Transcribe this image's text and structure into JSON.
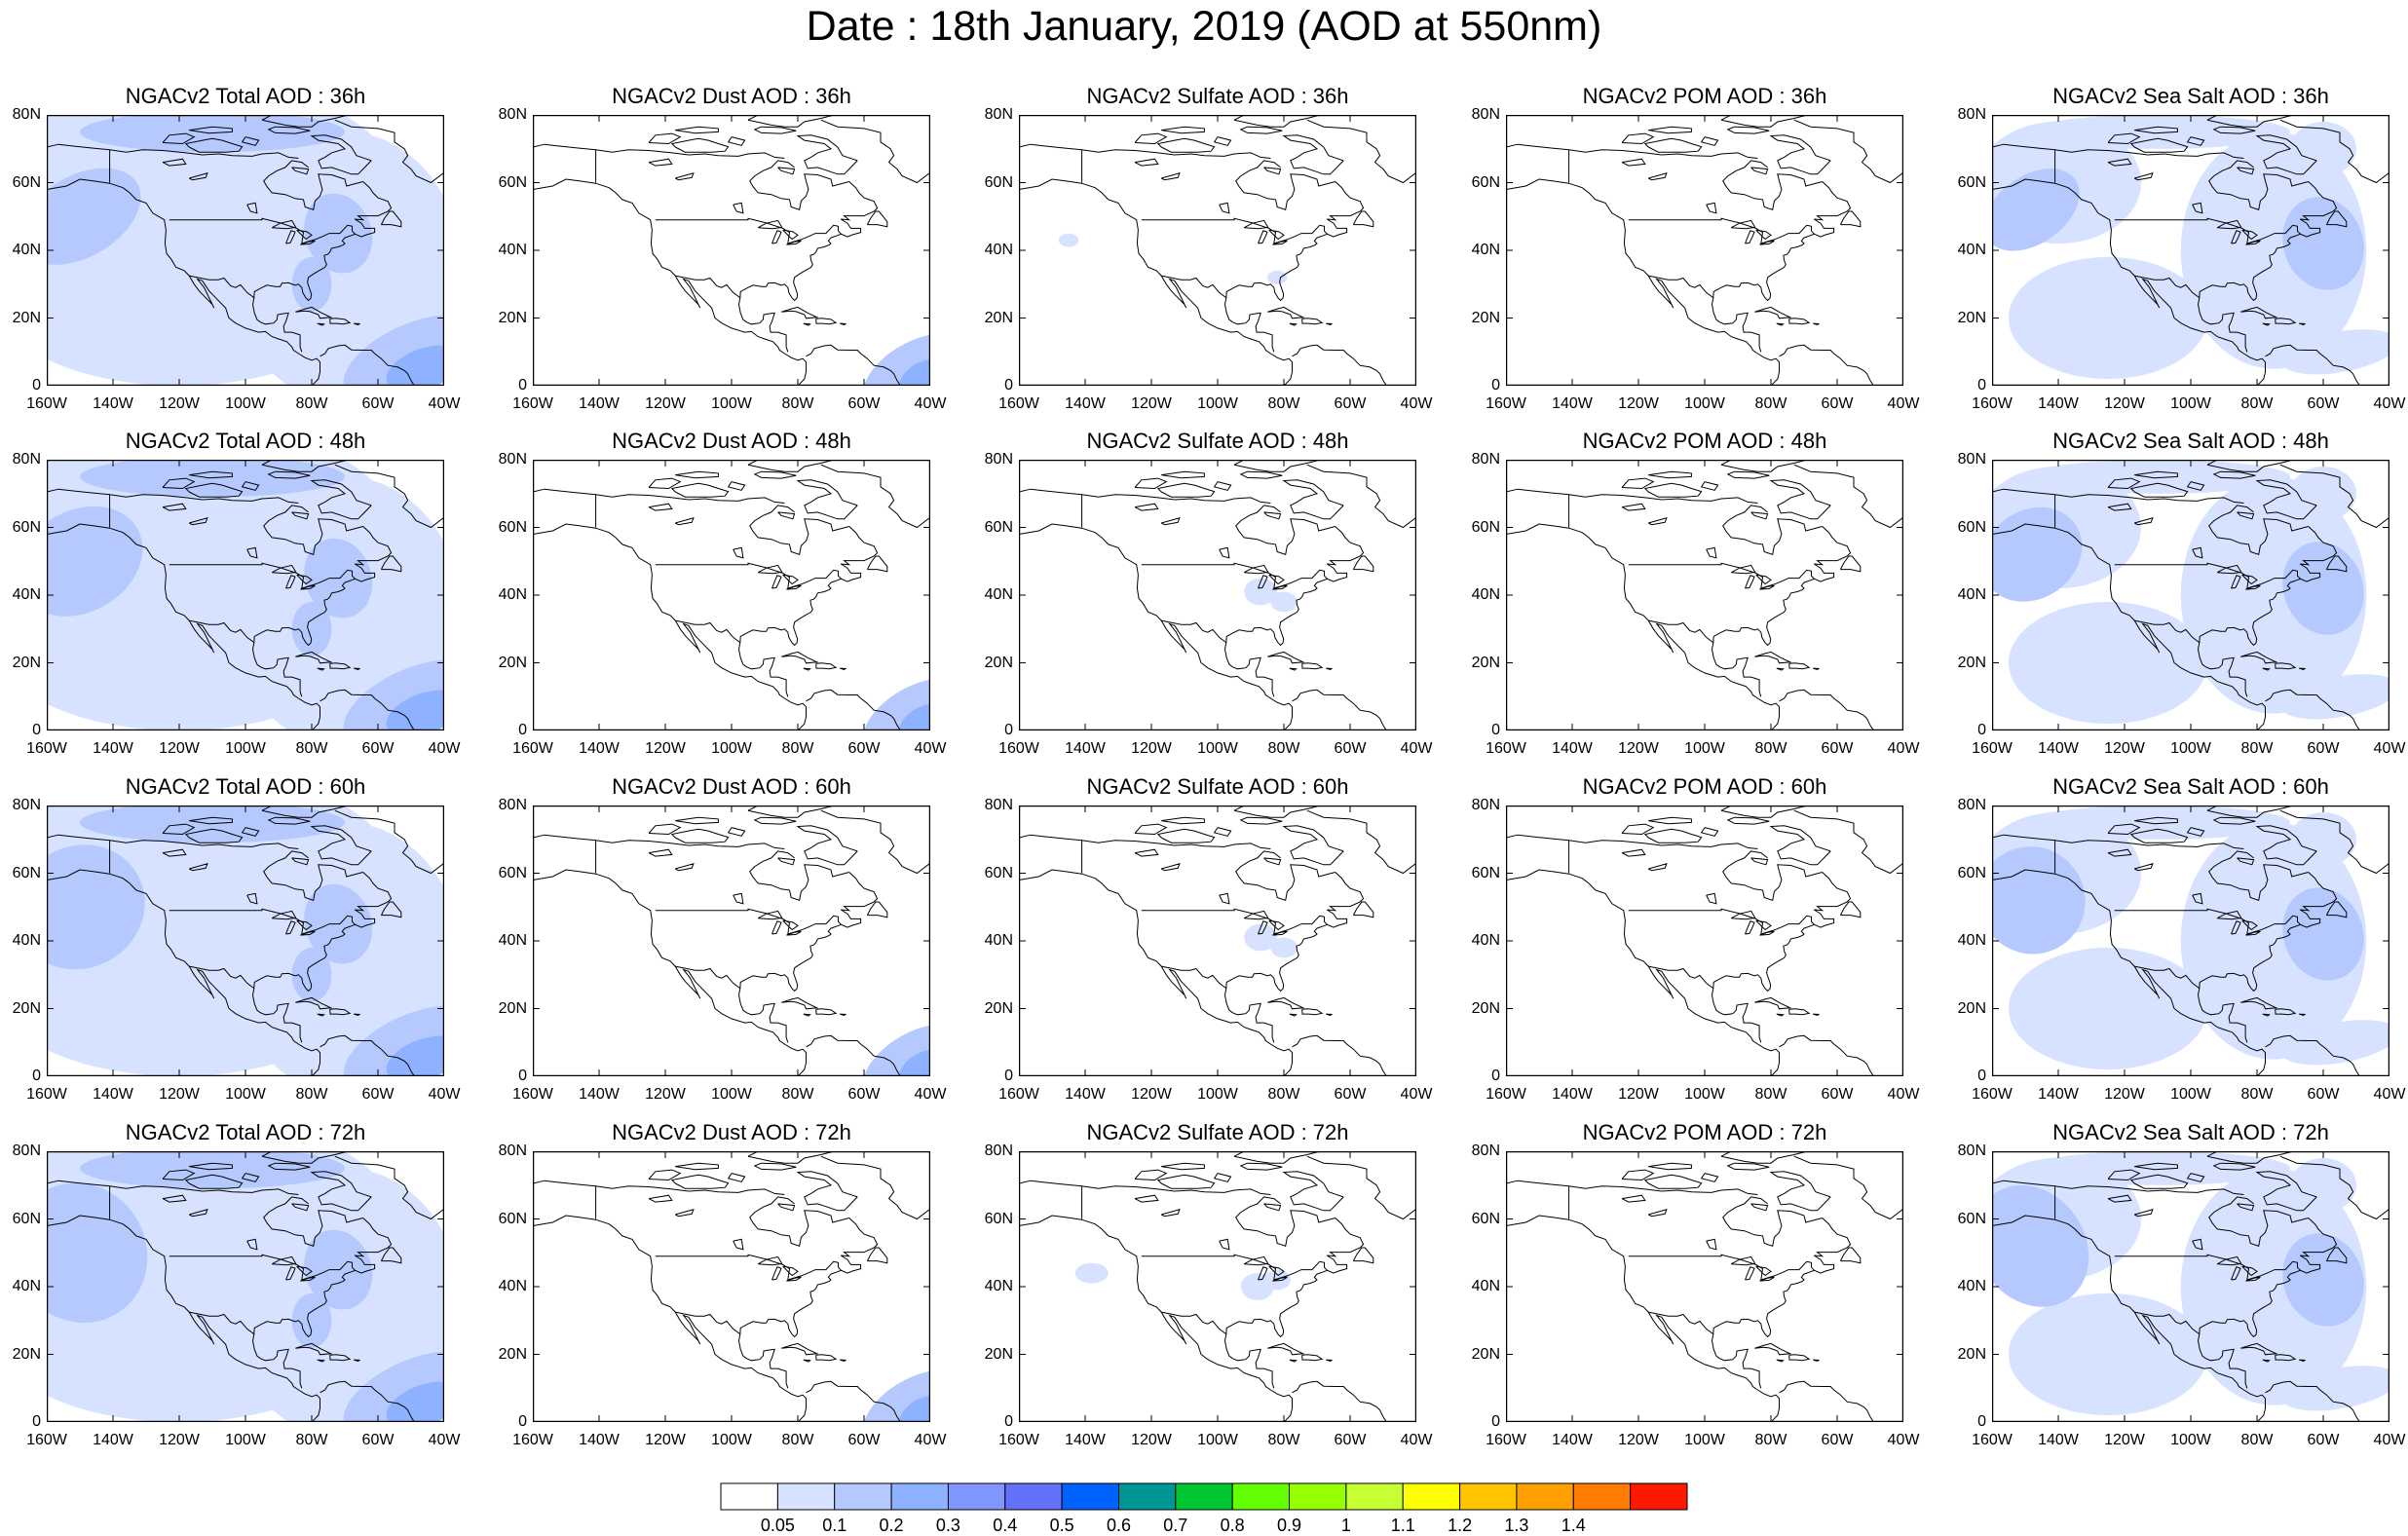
{
  "title": "Date : 18th January, 2019 (AOD at 550nm)",
  "x_ticks": [
    "160W",
    "140W",
    "120W",
    "100W",
    "80W",
    "60W",
    "40W"
  ],
  "y_ticks": [
    "80N",
    "60N",
    "40N",
    "20N",
    "0"
  ],
  "rows": [
    {
      "panels": [
        {
          "title": "NGACv2 Total AOD : 36h",
          "species": "total"
        },
        {
          "title": "NGACv2 Dust AOD : 36h",
          "species": "dust"
        },
        {
          "title": "NGACv2 Sulfate AOD : 36h",
          "species": "sulfate"
        },
        {
          "title": "NGACv2 POM AOD : 36h",
          "species": "pom"
        },
        {
          "title": "NGACv2 Sea Salt AOD : 36h",
          "species": "seasalt"
        }
      ]
    },
    {
      "panels": [
        {
          "title": "NGACv2 Total AOD : 48h",
          "species": "total"
        },
        {
          "title": "NGACv2 Dust AOD : 48h",
          "species": "dust"
        },
        {
          "title": "NGACv2 Sulfate AOD : 48h",
          "species": "sulfate"
        },
        {
          "title": "NGACv2 POM AOD : 48h",
          "species": "pom"
        },
        {
          "title": "NGACv2 Sea Salt AOD : 48h",
          "species": "seasalt"
        }
      ]
    },
    {
      "panels": [
        {
          "title": "NGACv2 Total AOD : 60h",
          "species": "total"
        },
        {
          "title": "NGACv2 Dust AOD : 60h",
          "species": "dust"
        },
        {
          "title": "NGACv2 Sulfate AOD : 60h",
          "species": "sulfate"
        },
        {
          "title": "NGACv2 POM AOD : 60h",
          "species": "pom"
        },
        {
          "title": "NGACv2 Sea Salt AOD : 60h",
          "species": "seasalt"
        }
      ]
    },
    {
      "panels": [
        {
          "title": "NGACv2 Total AOD : 72h",
          "species": "total"
        },
        {
          "title": "NGACv2 Dust AOD : 72h",
          "species": "dust"
        },
        {
          "title": "NGACv2 Sulfate AOD : 72h",
          "species": "sulfate"
        },
        {
          "title": "NGACv2 POM AOD : 72h",
          "species": "pom"
        },
        {
          "title": "NGACv2 Sea Salt  AOD : 72h",
          "species": "seasalt"
        }
      ]
    }
  ],
  "colorbar": {
    "colors": [
      "#ffffff",
      "#d6e2ff",
      "#b5c9ff",
      "#8eb2ff",
      "#7f96ff",
      "#6370f8",
      "#0063ff",
      "#009696",
      "#00c633",
      "#63ff00",
      "#96ff00",
      "#c6ff33",
      "#ffff00",
      "#ffc600",
      "#ffa000",
      "#ff7c00",
      "#ff1900"
    ],
    "labels": [
      "0.05",
      "0.1",
      "0.2",
      "0.3",
      "0.4",
      "0.5",
      "0.6",
      "0.7",
      "0.8",
      "0.9",
      "1",
      "1.1",
      "1.2",
      "1.3",
      "1.4"
    ]
  }
}
